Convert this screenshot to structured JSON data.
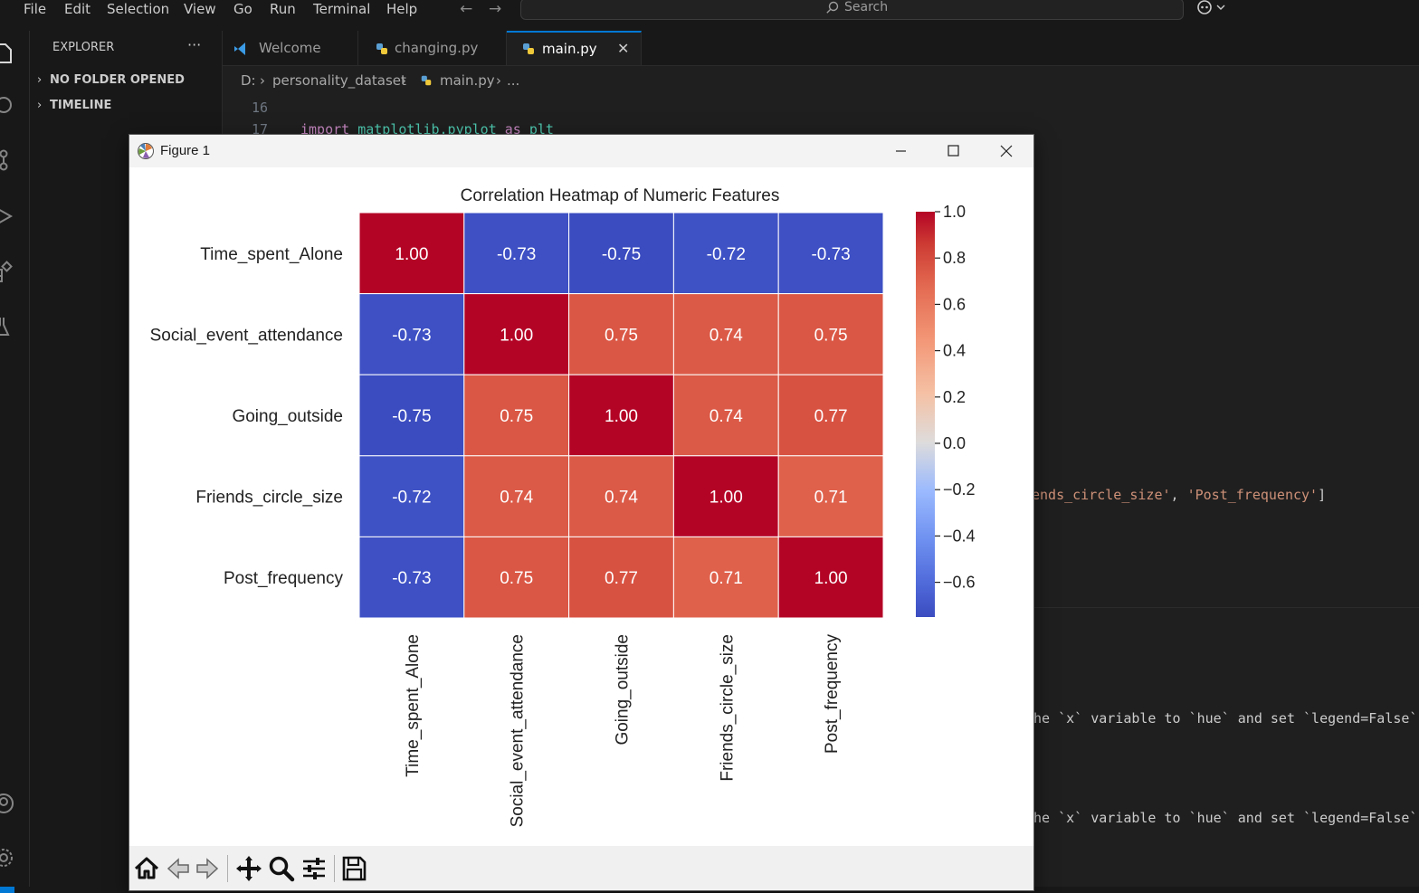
{
  "menubar": {
    "items": [
      "File",
      "Edit",
      "Selection",
      "View",
      "Go",
      "Run",
      "Terminal",
      "Help"
    ],
    "search_placeholder": "Search"
  },
  "explorer": {
    "title": "EXPLORER",
    "more": "···",
    "sections": [
      "NO FOLDER OPENED",
      "TIMELINE"
    ]
  },
  "tabs": [
    {
      "label": "Welcome",
      "icon": "vscode-logo-icon"
    },
    {
      "label": "changing.py",
      "icon": "python-icon"
    },
    {
      "label": "main.py",
      "icon": "python-icon",
      "active": true
    }
  ],
  "breadcrumb": [
    "D:",
    "personality_dataset",
    "main.py",
    "..."
  ],
  "editor": {
    "lines": [
      {
        "num": "16",
        "tokens": []
      },
      {
        "num": "17",
        "tokens": [
          [
            "kw",
            "import"
          ],
          [
            "plain",
            " "
          ],
          [
            "mod",
            "matplotlib.pyplot"
          ],
          [
            "plain",
            " "
          ],
          [
            "kw",
            "as"
          ],
          [
            "plain",
            " "
          ],
          [
            "mod",
            "plt"
          ]
        ]
      }
    ],
    "visible_fragment": [
      [
        "str",
        "ends_circle_size'"
      ],
      [
        "plain",
        ", "
      ],
      [
        "str",
        "'Post_frequency'"
      ],
      [
        "plain",
        "]"
      ]
    ]
  },
  "terminal": {
    "lines": [
      "he `x` variable to `hue` and set `legend=False`",
      "he `x` variable to `hue` and set `legend=False`"
    ]
  },
  "figure_window": {
    "title": "Figure 1",
    "toolbar_icons": [
      "home-icon",
      "back-icon",
      "forward-icon",
      "pan-icon",
      "zoom-icon",
      "configure-subplots-icon",
      "save-icon"
    ]
  },
  "chart_data": {
    "type": "heatmap",
    "title": "Correlation Heatmap of Numeric Features",
    "rows": [
      "Time_spent_Alone",
      "Social_event_attendance",
      "Going_outside",
      "Friends_circle_size",
      "Post_frequency"
    ],
    "columns": [
      "Time_spent_Alone",
      "Social_event_attendance",
      "Going_outside",
      "Friends_circle_size",
      "Post_frequency"
    ],
    "values": [
      [
        1.0,
        -0.73,
        -0.75,
        -0.72,
        -0.73
      ],
      [
        -0.73,
        1.0,
        0.75,
        0.74,
        0.75
      ],
      [
        -0.75,
        0.75,
        1.0,
        0.74,
        0.77
      ],
      [
        -0.72,
        0.74,
        0.74,
        1.0,
        0.71
      ],
      [
        -0.73,
        0.75,
        0.77,
        0.71,
        1.0
      ]
    ],
    "annotation_format": "0.00",
    "colormap": "coolwarm",
    "colorbar": {
      "min": -0.75,
      "max": 1.0,
      "ticks": [
        1.0,
        0.8,
        0.6,
        0.4,
        0.2,
        0.0,
        -0.2,
        -0.4,
        -0.6
      ],
      "tick_labels": [
        "1.0",
        "0.8",
        "0.6",
        "0.4",
        "0.2",
        "0.0",
        "−0.2",
        "−0.4",
        "−0.6"
      ]
    },
    "cell_line_color": "#ffffff",
    "annotation_color": "#ffffff",
    "xtick_rotation": 90
  }
}
